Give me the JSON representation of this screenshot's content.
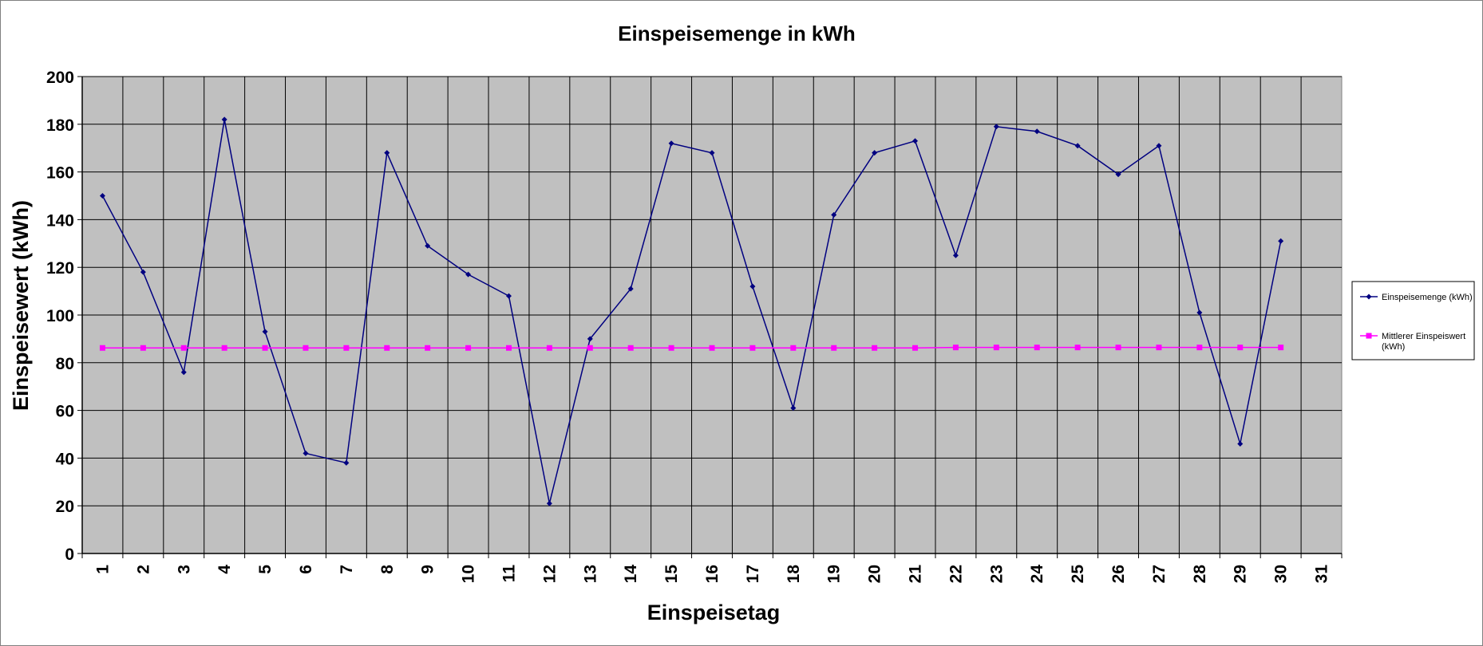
{
  "chart_data": {
    "type": "line",
    "title": "Einspeisemenge in kWh",
    "xlabel": "Einspeisetag",
    "ylabel": "Einspeisewert  (kWh)",
    "categories": [
      "1",
      "2",
      "3",
      "4",
      "5",
      "6",
      "7",
      "8",
      "9",
      "10",
      "11",
      "12",
      "13",
      "14",
      "15",
      "16",
      "17",
      "18",
      "19",
      "20",
      "21",
      "22",
      "23",
      "24",
      "25",
      "26",
      "27",
      "28",
      "29",
      "30",
      "31"
    ],
    "ylim": [
      0,
      200
    ],
    "yticks": [
      0,
      20,
      40,
      60,
      80,
      100,
      120,
      140,
      160,
      180,
      200
    ],
    "grid": true,
    "legend_position": "right",
    "plot_background": "#c0c0c0",
    "series": [
      {
        "name": "Einspeisemenge (kWh)",
        "color": "#000080",
        "marker": "diamond",
        "values": [
          150,
          118,
          76,
          182,
          93,
          42,
          38,
          168,
          129,
          117,
          108,
          21,
          90,
          111,
          172,
          168,
          112,
          61,
          142,
          168,
          173,
          125,
          179,
          177,
          171,
          159,
          171,
          101,
          46,
          131,
          null
        ]
      },
      {
        "name": "Mittlerer Einspeiswert (kWh)",
        "color": "#ff00ff",
        "marker": "square",
        "values": [
          86.2,
          86.2,
          86.2,
          86.2,
          86.2,
          86.2,
          86.2,
          86.2,
          86.2,
          86.2,
          86.2,
          86.2,
          86.2,
          86.2,
          86.2,
          86.2,
          86.2,
          86.2,
          86.2,
          86.2,
          86.2,
          86.4,
          86.4,
          86.4,
          86.4,
          86.4,
          86.4,
          86.4,
          86.4,
          86.4,
          null
        ]
      }
    ]
  }
}
